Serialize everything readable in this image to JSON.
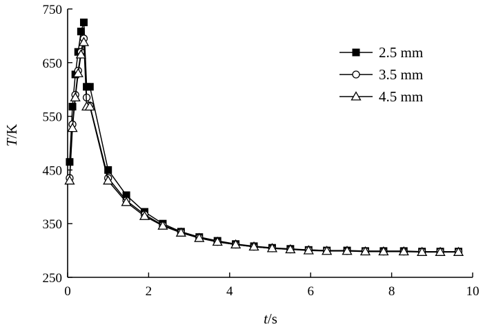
{
  "chart_data": {
    "type": "line",
    "title": "",
    "xlabel": {
      "var": "t",
      "unit": "/s"
    },
    "ylabel": {
      "var": "T",
      "unit": "/K"
    },
    "xlim": [
      0,
      10
    ],
    "ylim": [
      250,
      750
    ],
    "xticks": [
      0,
      2,
      4,
      6,
      8,
      10
    ],
    "yticks": [
      250,
      350,
      450,
      550,
      650,
      750
    ],
    "grid": false,
    "legend_position": "top-right",
    "series": [
      {
        "name": "2.5 mm",
        "marker": "filled-square",
        "x": [
          0.05,
          0.12,
          0.19,
          0.26,
          0.33,
          0.4,
          0.47,
          0.55,
          1.0,
          1.45,
          1.9,
          2.35,
          2.8,
          3.25,
          3.7,
          4.15,
          4.6,
          5.05,
          5.5,
          5.95,
          6.4,
          6.9,
          7.35,
          7.8,
          8.3,
          8.75,
          9.2,
          9.65
        ],
        "y": [
          465,
          568,
          628,
          670,
          708,
          725,
          605,
          605,
          450,
          403,
          372,
          350,
          335,
          325,
          318,
          312,
          308,
          305,
          303,
          301,
          300,
          300,
          299,
          299,
          299,
          298,
          298,
          298
        ]
      },
      {
        "name": "3.5 mm",
        "marker": "open-circle",
        "x": [
          0.05,
          0.12,
          0.19,
          0.26,
          0.33,
          0.4,
          0.47,
          0.55,
          1.0,
          1.45,
          1.9,
          2.35,
          2.8,
          3.25,
          3.7,
          4.15,
          4.6,
          5.05,
          5.5,
          5.95,
          6.4,
          6.9,
          7.35,
          7.8,
          8.3,
          8.75,
          9.2,
          9.65
        ],
        "y": [
          435,
          535,
          590,
          635,
          670,
          695,
          585,
          570,
          435,
          393,
          367,
          347,
          334,
          324,
          316,
          311,
          307,
          304,
          302,
          301,
          300,
          299,
          299,
          298,
          298,
          298,
          298,
          298
        ]
      },
      {
        "name": "4.5 mm",
        "marker": "open-triangle",
        "x": [
          0.05,
          0.12,
          0.19,
          0.26,
          0.33,
          0.4,
          0.47,
          0.55,
          1.0,
          1.45,
          1.9,
          2.35,
          2.8,
          3.25,
          3.7,
          4.15,
          4.6,
          5.05,
          5.5,
          5.95,
          6.4,
          6.9,
          7.35,
          7.8,
          8.3,
          8.75,
          9.2,
          9.65
        ],
        "y": [
          430,
          528,
          585,
          630,
          665,
          688,
          568,
          568,
          430,
          390,
          364,
          346,
          333,
          323,
          316,
          311,
          307,
          304,
          302,
          300,
          299,
          299,
          298,
          298,
          298,
          297,
          297,
          297
        ]
      }
    ]
  }
}
